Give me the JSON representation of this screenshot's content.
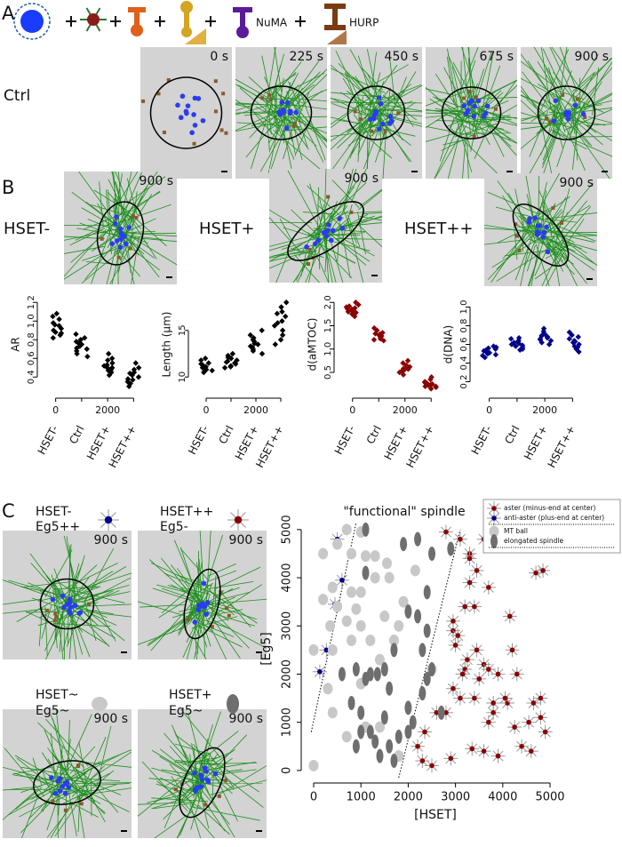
{
  "panel_a": {
    "label": "A",
    "icon_labels": [
      "NuMA",
      "HURP"
    ],
    "row_label": "Ctrl",
    "times": [
      "0 s",
      "225 s",
      "450 s",
      "675 s",
      "900 s"
    ]
  },
  "panel_b": {
    "label": "B",
    "sims": [
      {
        "name": "HSET-",
        "time": "900 s"
      },
      {
        "name": "HSET+",
        "time": "900 s"
      },
      {
        "name": "HSET++",
        "time": "900 s"
      }
    ]
  },
  "panel_c": {
    "label": "C",
    "sims": [
      {
        "hset": "HSET-",
        "eg5": "Eg5++",
        "time": "900 s"
      },
      {
        "hset": "HSET++",
        "eg5": "Eg5-",
        "time": "900 s"
      },
      {
        "hset": "HSET~",
        "eg5": "Eg5~",
        "time": "900 s"
      },
      {
        "hset": "HSET+",
        "eg5": "Eg5~",
        "time": "900 s"
      }
    ]
  },
  "chart_data": [
    {
      "type": "strip",
      "ylabel": "AR",
      "categories": [
        "HSET-",
        "Ctrl",
        "HSET+",
        "HSET++"
      ],
      "xticks": [
        0,
        2000
      ],
      "color": "#000000",
      "ylim": [
        0.25,
        1.25
      ],
      "yticks": [
        0.4,
        0.6,
        0.8,
        {
          "value": 1.0,
          "label": "1.0"
        },
        1.2
      ],
      "values": [
        [
          0.95,
          0.88,
          1.02,
          0.92,
          0.85,
          0.98,
          1.05,
          0.9,
          0.82,
          0.96,
          1.08,
          0.87
        ],
        [
          0.75,
          0.7,
          0.82,
          0.68,
          0.78,
          0.65,
          0.73,
          0.86,
          0.71,
          0.62,
          0.8,
          0.76
        ],
        [
          0.5,
          0.55,
          0.45,
          0.6,
          0.48,
          0.52,
          0.42,
          0.58,
          0.53,
          0.47,
          0.65,
          0.5
        ],
        [
          0.42,
          0.35,
          0.5,
          0.38,
          0.45,
          0.3,
          0.55,
          0.4,
          0.33,
          0.48,
          0.37,
          0.44
        ]
      ]
    },
    {
      "type": "strip",
      "ylabel": "Length (µm)",
      "categories": [
        "HSET-",
        "Ctrl",
        "HSET+",
        "HSET++"
      ],
      "xticks": [
        0,
        2000
      ],
      "color": "#000000",
      "ylim": [
        8.5,
        18.5
      ],
      "yticks": [
        10,
        15
      ],
      "values": [
        [
          11,
          10.8,
          11.5,
          11.2,
          10.5,
          11.8,
          11.1,
          10.9,
          11.4,
          10.7,
          12,
          11.3
        ],
        [
          11.5,
          11.2,
          12,
          11.8,
          11.1,
          12.3,
          11.6,
          11.4,
          12.1,
          11,
          12.5,
          11.7
        ],
        [
          13.5,
          13,
          14.2,
          12.8,
          13.8,
          14.5,
          13.2,
          12.5,
          14,
          13.6,
          15,
          13.3
        ],
        [
          15.5,
          14.5,
          16.5,
          17.5,
          15,
          13.5,
          16,
          17,
          14,
          18,
          15.8,
          16.8
        ]
      ]
    },
    {
      "type": "strip",
      "ylabel": "d(aMTOC)",
      "categories": [
        "HSET-",
        "Ctrl",
        "HSET+",
        "HSET++"
      ],
      "xticks": [
        0,
        2000
      ],
      "color": "#8b0000",
      "ylim": [
        0.1,
        2.1
      ],
      "yticks": [
        0.5,
        {
          "value": 1.0,
          "label": "1.0"
        },
        1.5,
        {
          "value": 2.0,
          "label": "2.0"
        }
      ],
      "values": [
        [
          1.85,
          1.8,
          1.9,
          1.75,
          1.95,
          1.82,
          1.88,
          1.7,
          2.0,
          1.78,
          1.86,
          1.92
        ],
        [
          1.3,
          1.25,
          1.35,
          1.2,
          1.4,
          1.28,
          1.32,
          1.18,
          1.45,
          1.27,
          1.33,
          1.22
        ],
        [
          0.6,
          0.55,
          0.65,
          0.5,
          0.7,
          0.58,
          0.62,
          0.45,
          0.75,
          0.57,
          0.63,
          0.53
        ],
        [
          0.25,
          0.2,
          0.3,
          0.18,
          0.35,
          0.22,
          0.28,
          0.15,
          0.4,
          0.24,
          0.27,
          0.2
        ]
      ]
    },
    {
      "type": "strip",
      "ylabel": "d(DNA)",
      "categories": [
        "HSET-",
        "Ctrl",
        "HSET+",
        "HSET++"
      ],
      "xticks": [
        0,
        2000
      ],
      "color": "#00008b",
      "ylim": [
        0.1,
        1.1
      ],
      "yticks": [
        0.2,
        0.4,
        0.6,
        0.8,
        {
          "value": 1.0,
          "label": "1.0"
        }
      ],
      "values": [
        [
          0.52,
          0.5,
          0.55,
          0.48,
          0.57,
          0.53,
          0.51,
          0.46,
          0.58,
          0.54,
          0.49,
          0.56
        ],
        [
          0.6,
          0.58,
          0.63,
          0.55,
          0.66,
          0.61,
          0.59,
          0.54,
          0.67,
          0.62,
          0.57,
          0.64
        ],
        [
          0.67,
          0.65,
          0.7,
          0.62,
          0.74,
          0.68,
          0.66,
          0.6,
          0.77,
          0.69,
          0.64,
          0.71
        ],
        [
          0.62,
          0.58,
          0.66,
          0.55,
          0.7,
          0.63,
          0.6,
          0.52,
          0.73,
          0.64,
          0.57,
          0.68
        ]
      ]
    },
    {
      "type": "scatter",
      "annotation": "\"functional\" spindle",
      "xlabel": "[HSET]",
      "ylabel": "[Eg5]",
      "xlim": [
        -150,
        5300
      ],
      "ylim": [
        -150,
        5200
      ],
      "xticks": [
        0,
        1000,
        2000,
        3000,
        4000,
        5000
      ],
      "yticks": [
        0,
        1000,
        2000,
        3000,
        4000,
        5000
      ],
      "legend": "top-right",
      "guide_lines": [
        {
          "x": [
            -50,
            900
          ],
          "y": [
            800,
            5150
          ]
        },
        {
          "x": [
            1800,
            3100
          ],
          "y": [
            -150,
            5000
          ]
        }
      ],
      "series": [
        {
          "name": "aster (minus-end at center)",
          "color": "#8b0000",
          "marker": "star",
          "x": [
            2800,
            3100,
            3300,
            3600,
            3450,
            3300,
            3300,
            3700,
            2950,
            3200,
            3400,
            2950,
            3050,
            3000,
            3250,
            3200,
            3450,
            3500,
            3600,
            3700,
            3900,
            3150,
            2950,
            3400,
            3800,
            2800,
            2600,
            2350,
            2200,
            2300,
            2500,
            2900,
            3350,
            3600,
            3900,
            4100,
            4150,
            4200,
            4300,
            4700,
            4850,
            4250,
            4550,
            4400,
            4600,
            4650,
            4800,
            4900,
            4800,
            3100,
            4050,
            3700,
            3800
          ],
          "y": [
            4950,
            4800,
            4500,
            4800,
            4150,
            4400,
            3900,
            3800,
            3100,
            3400,
            3400,
            2900,
            2800,
            2600,
            2300,
            2100,
            2500,
            1900,
            2200,
            2100,
            2000,
            2000,
            1700,
            1500,
            1400,
            1200,
            1200,
            800,
            500,
            200,
            100,
            250,
            450,
            400,
            300,
            1400,
            3200,
            2500,
            2000,
            4100,
            4150,
            900,
            1000,
            500,
            400,
            1400,
            1100,
            800,
            1500,
            1500,
            1500,
            1000,
            1200
          ]
        },
        {
          "name": "anti-aster (plus-end at center)",
          "color": "#00008b",
          "marker": "star",
          "x": [
            500,
            600,
            450,
            270,
            130
          ],
          "y": [
            4800,
            3950,
            3450,
            2500,
            2050
          ]
        },
        {
          "name": "MT ball",
          "color": "#c8c8c8",
          "marker": "ball",
          "x": [
            700,
            1000,
            500,
            200,
            800,
            1100,
            1300,
            400,
            800,
            1000,
            1300,
            1550,
            1600,
            200,
            500,
            900,
            1000,
            1500,
            700,
            350,
            800,
            1200,
            1700,
            0,
            400,
            1400,
            300,
            1000,
            400,
            1100,
            1400,
            700,
            2500,
            0,
            1800,
            2150,
            1900,
            1800
          ],
          "y": [
            5000,
            4950,
            4700,
            4500,
            4500,
            4450,
            4450,
            3800,
            3700,
            3700,
            4000,
            4300,
            4000,
            3550,
            3400,
            3350,
            3000,
            3200,
            3100,
            3000,
            2700,
            2700,
            2700,
            2500,
            2500,
            2300,
            1700,
            1800,
            1200,
            900,
            900,
            700,
            2100,
            100,
            300,
            4150,
            3500,
            3000
          ]
        },
        {
          "name": "elongated spindle",
          "color": "#6e6e6e",
          "marker": "elongated",
          "x": [
            1100,
            1100,
            1900,
            2200,
            2900,
            2500,
            2400,
            2200,
            2400,
            2300,
            2000,
            1700,
            1500,
            1350,
            1100,
            900,
            1200,
            600,
            800,
            1000,
            1200,
            1300,
            1600,
            1800,
            2000,
            1700,
            2100,
            2000,
            2400,
            2500,
            2700,
            2300,
            1600,
            1500,
            1000,
            900,
            1400
          ],
          "y": [
            5000,
            4100,
            4700,
            4800,
            4600,
            4500,
            3700,
            3200,
            2900,
            2500,
            3300,
            2500,
            2100,
            2000,
            1900,
            2100,
            2000,
            2000,
            1400,
            1200,
            800,
            600,
            500,
            700,
            800,
            200,
            1000,
            1300,
            1900,
            2100,
            1200,
            1600,
            1700,
            1100,
            800,
            500,
            300
          ]
        }
      ]
    }
  ]
}
